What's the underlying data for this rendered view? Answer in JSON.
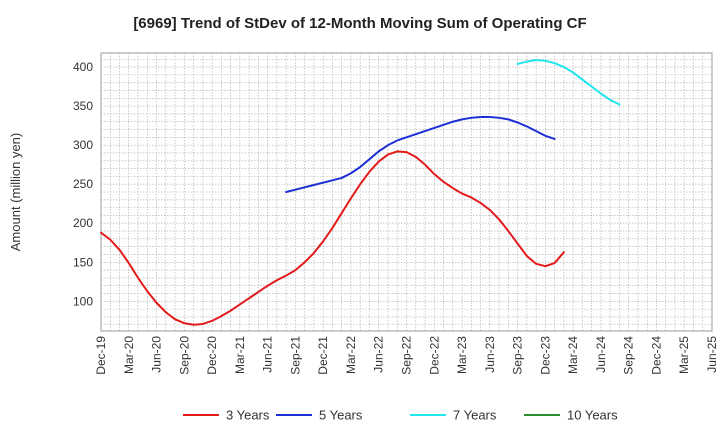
{
  "chart_data": {
    "type": "line",
    "title": "[6969]  Trend of StDev of 12-Month Moving Sum of Operating CF",
    "xlabel": "",
    "ylabel": "Amount (million yen)",
    "ylim": [
      62,
      418
    ],
    "yticks": [
      100,
      150,
      200,
      250,
      300,
      350,
      400
    ],
    "x_range": [
      0,
      66
    ],
    "grid": true,
    "legend_position": "bottom",
    "x_ticks": [
      {
        "label": "Dec-19",
        "x": 0
      },
      {
        "label": "Mar-20",
        "x": 3
      },
      {
        "label": "Jun-20",
        "x": 6
      },
      {
        "label": "Sep-20",
        "x": 9
      },
      {
        "label": "Dec-20",
        "x": 12
      },
      {
        "label": "Mar-21",
        "x": 15
      },
      {
        "label": "Jun-21",
        "x": 18
      },
      {
        "label": "Sep-21",
        "x": 21
      },
      {
        "label": "Dec-21",
        "x": 24
      },
      {
        "label": "Mar-22",
        "x": 27
      },
      {
        "label": "Jun-22",
        "x": 30
      },
      {
        "label": "Sep-22",
        "x": 33
      },
      {
        "label": "Dec-22",
        "x": 36
      },
      {
        "label": "Mar-23",
        "x": 39
      },
      {
        "label": "Jun-23",
        "x": 42
      },
      {
        "label": "Sep-23",
        "x": 45
      },
      {
        "label": "Dec-23",
        "x": 48
      },
      {
        "label": "Mar-24",
        "x": 51
      },
      {
        "label": "Jun-24",
        "x": 54
      },
      {
        "label": "Sep-24",
        "x": 57
      },
      {
        "label": "Dec-24",
        "x": 60
      },
      {
        "label": "Mar-25",
        "x": 63
      },
      {
        "label": "Jun-25",
        "x": 66
      }
    ],
    "series": [
      {
        "name": "3 Years",
        "color": "#e31a1c",
        "points": [
          [
            0,
            188
          ],
          [
            1,
            179
          ],
          [
            2,
            166
          ],
          [
            3,
            149
          ],
          [
            4,
            130
          ],
          [
            5,
            113
          ],
          [
            6,
            98
          ],
          [
            7,
            86
          ],
          [
            8,
            77
          ],
          [
            9,
            72
          ],
          [
            10,
            70
          ],
          [
            11,
            71
          ],
          [
            12,
            75
          ],
          [
            13,
            81
          ],
          [
            14,
            88
          ],
          [
            15,
            96
          ],
          [
            16,
            104
          ],
          [
            17,
            112
          ],
          [
            18,
            120
          ],
          [
            19,
            127
          ],
          [
            20,
            133
          ],
          [
            21,
            140
          ],
          [
            22,
            150
          ],
          [
            23,
            162
          ],
          [
            24,
            177
          ],
          [
            25,
            194
          ],
          [
            26,
            213
          ],
          [
            27,
            232
          ],
          [
            28,
            250
          ],
          [
            29,
            266
          ],
          [
            30,
            279
          ],
          [
            31,
            288
          ],
          [
            32,
            292
          ],
          [
            33,
            291
          ],
          [
            34,
            285
          ],
          [
            35,
            275
          ],
          [
            36,
            263
          ],
          [
            37,
            253
          ],
          [
            38,
            245
          ],
          [
            39,
            238
          ],
          [
            40,
            233
          ],
          [
            41,
            226
          ],
          [
            42,
            217
          ],
          [
            43,
            205
          ],
          [
            44,
            190
          ],
          [
            45,
            174
          ],
          [
            46,
            158
          ],
          [
            47,
            148
          ],
          [
            48,
            145
          ],
          [
            49,
            149
          ],
          [
            50,
            163
          ]
        ]
      },
      {
        "name": "5 Years",
        "color": "#1f2fd6",
        "points": [
          [
            20,
            240
          ],
          [
            21,
            243
          ],
          [
            22,
            246
          ],
          [
            23,
            249
          ],
          [
            24,
            252
          ],
          [
            25,
            255
          ],
          [
            26,
            258
          ],
          [
            27,
            264
          ],
          [
            28,
            272
          ],
          [
            29,
            282
          ],
          [
            30,
            292
          ],
          [
            31,
            300
          ],
          [
            32,
            306
          ],
          [
            33,
            310
          ],
          [
            34,
            314
          ],
          [
            35,
            318
          ],
          [
            36,
            322
          ],
          [
            37,
            326
          ],
          [
            38,
            330
          ],
          [
            39,
            333
          ],
          [
            40,
            335
          ],
          [
            41,
            336
          ],
          [
            42,
            336
          ],
          [
            43,
            335
          ],
          [
            44,
            333
          ],
          [
            45,
            329
          ],
          [
            46,
            324
          ],
          [
            47,
            318
          ],
          [
            48,
            312
          ],
          [
            49,
            308
          ]
        ]
      },
      {
        "name": "7 Years",
        "color": "#22e5ee",
        "points": [
          [
            45,
            404
          ],
          [
            46,
            407
          ],
          [
            47,
            409
          ],
          [
            48,
            408
          ],
          [
            49,
            405
          ],
          [
            50,
            400
          ],
          [
            51,
            393
          ],
          [
            52,
            384
          ],
          [
            53,
            375
          ],
          [
            54,
            366
          ],
          [
            55,
            358
          ],
          [
            56,
            352
          ]
        ]
      },
      {
        "name": "10 Years",
        "color": "#2e8b2e",
        "points": []
      }
    ]
  }
}
